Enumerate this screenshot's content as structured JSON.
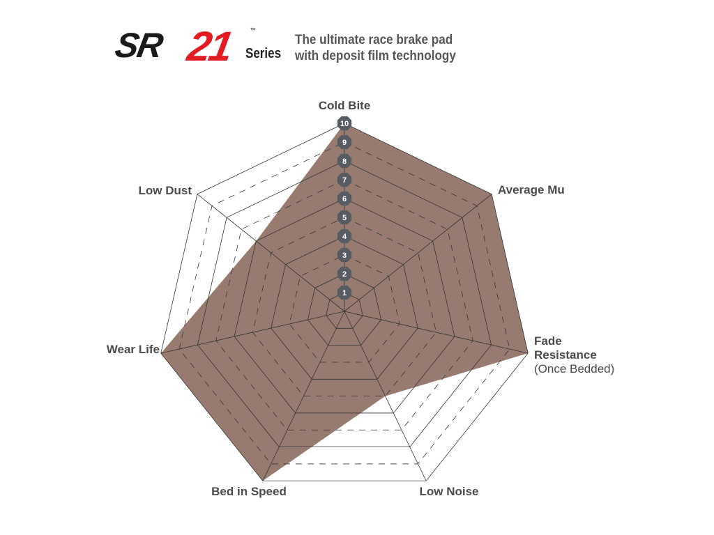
{
  "header": {
    "logo_text": "SR-21",
    "logo_prefix": "SR",
    "logo_number": "21",
    "logo_tm": "™",
    "logo_series": "Series",
    "tagline_line1": "The ultimate race brake pad",
    "tagline_line2": "with deposit film technology"
  },
  "chart_data": {
    "type": "radar",
    "axes": [
      "Cold Bite",
      "Average Mu",
      "Fade Resistance",
      "Low Noise",
      "Bed in Speed",
      "Wear Life",
      "Low Dust"
    ],
    "axis_sublabels": {
      "Fade Resistance": "(Once Bedded)"
    },
    "values": [
      10,
      10,
      10,
      5,
      10,
      10,
      6
    ],
    "range": [
      0,
      10
    ],
    "ticks": [
      "1",
      "2",
      "3",
      "4",
      "5",
      "6",
      "7",
      "8",
      "9",
      "10"
    ],
    "grid": true,
    "colors": {
      "fill": "#987b70",
      "badge": "#565c62",
      "grid": "#333333"
    }
  }
}
